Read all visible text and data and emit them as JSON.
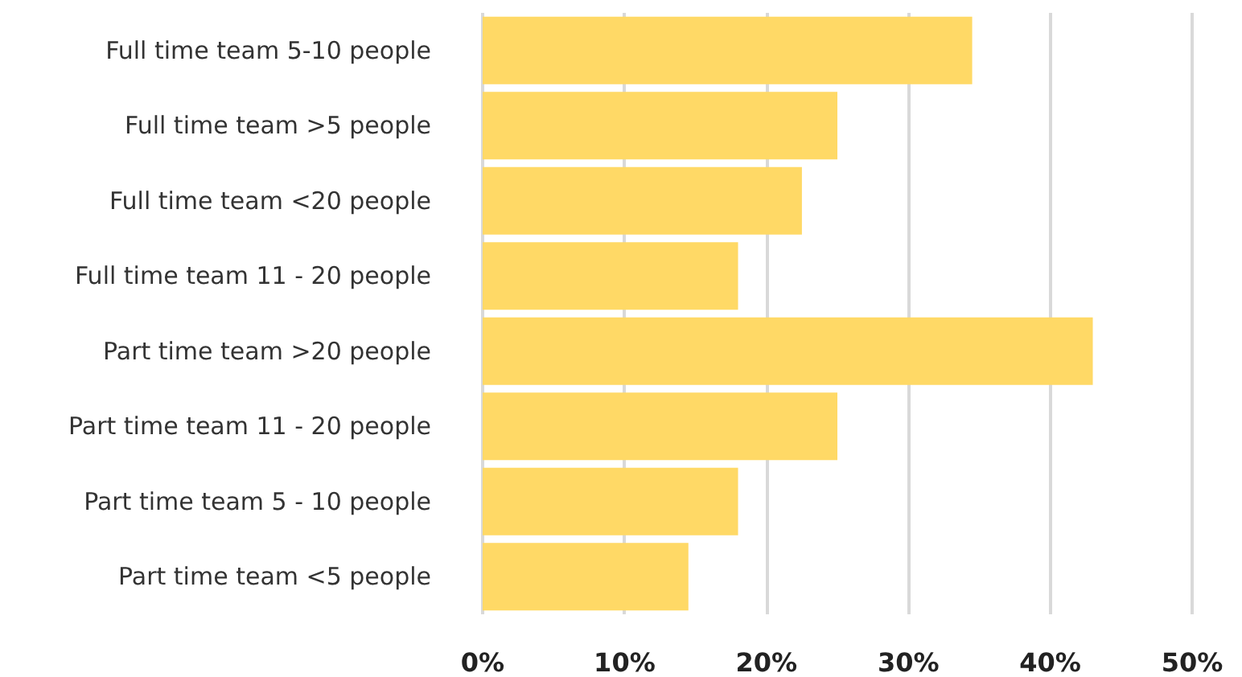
{
  "chart_data": {
    "type": "bar",
    "orientation": "horizontal",
    "categories": [
      "Full time team 5-10 people",
      "Full time team >5 people",
      "Full time team <20 people",
      "Full time team 11 - 20 people",
      "Part time team >20 people",
      "Part time team 11 - 20 people",
      "Part time team 5 - 10 people",
      "Part time team <5 people"
    ],
    "values": [
      34.5,
      25,
      22.5,
      18,
      43,
      25,
      18,
      14.5
    ],
    "color": "#ffd966",
    "xlim": [
      0,
      50
    ],
    "xticks": [
      {
        "value": 0,
        "label": "0%"
      },
      {
        "value": 10,
        "label": "10%"
      },
      {
        "value": 20,
        "label": "20%"
      },
      {
        "value": 30,
        "label": "30%"
      },
      {
        "value": 40,
        "label": "40%"
      },
      {
        "value": 50,
        "label": "50%"
      }
    ],
    "grid": "x"
  }
}
